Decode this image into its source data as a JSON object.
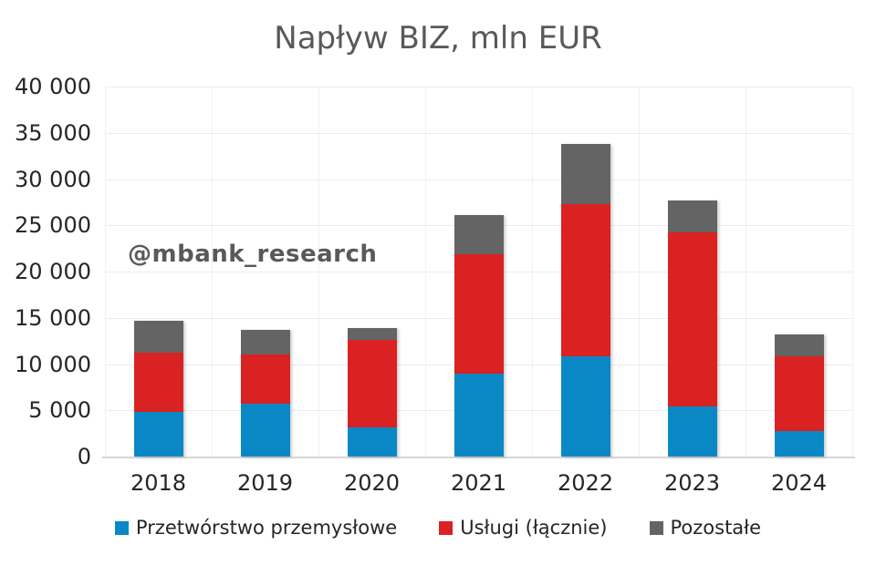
{
  "title": "Napływ BIZ, mln EUR",
  "watermark": "@mbank_research",
  "colors": {
    "background": "#FFFFFF",
    "title_text": "#595959",
    "axis_text": "#262626",
    "watermark_text": "#595959",
    "gridline_horizontal": "#ECECEC",
    "gridline_vertical": "#F3F1F1",
    "baseline": "#D6D6D6",
    "series_blue": "#0A88C6",
    "series_red": "#D92221",
    "series_gray": "#646464"
  },
  "chart_data": {
    "type": "bar",
    "stacked": true,
    "title": "Napływ BIZ, mln EUR",
    "unit": "mln EUR",
    "categories": [
      "2018",
      "2019",
      "2020",
      "2021",
      "2022",
      "2023",
      "2024"
    ],
    "series": [
      {
        "name": "Przetwórstwo przemysłowe",
        "color": "#0A88C6",
        "values": [
          4800,
          5700,
          3200,
          9000,
          10800,
          5400,
          2800
        ]
      },
      {
        "name": "Usługi (łącznie)",
        "color": "#D92221",
        "values": [
          6400,
          5300,
          9400,
          12900,
          16500,
          18800,
          8000
        ]
      },
      {
        "name": "Pozostałe",
        "color": "#646464",
        "values": [
          3500,
          2700,
          1300,
          4200,
          6500,
          3500,
          2400
        ]
      }
    ],
    "ylim": [
      0,
      40000
    ],
    "yticks": [
      {
        "value": 0,
        "label": "0"
      },
      {
        "value": 5000,
        "label": "5 000"
      },
      {
        "value": 10000,
        "label": "10 000"
      },
      {
        "value": 15000,
        "label": "15 000"
      },
      {
        "value": 20000,
        "label": "20 000"
      },
      {
        "value": 25000,
        "label": "25 000"
      },
      {
        "value": 30000,
        "label": "30 000"
      },
      {
        "value": 35000,
        "label": "35 000"
      },
      {
        "value": 40000,
        "label": "40 000"
      }
    ],
    "grid": {
      "horizontal": true,
      "vertical": true
    },
    "legend_position": "bottom"
  }
}
